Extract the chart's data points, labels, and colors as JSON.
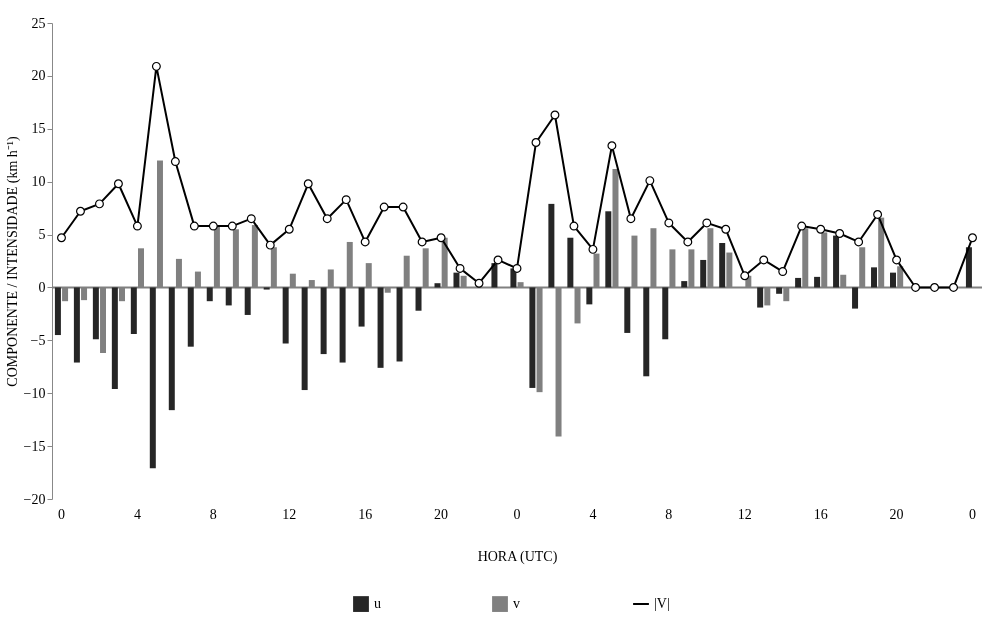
{
  "chart_data": {
    "type": "bar",
    "xlabel": "HORA (UTC)",
    "ylabel": "COMPONENTE / INTENSIDADE  (km h⁻¹)",
    "categories": [
      "0",
      null,
      null,
      null,
      "4",
      null,
      null,
      null,
      "8",
      null,
      null,
      null,
      "12",
      null,
      null,
      null,
      "16",
      null,
      null,
      null,
      "20",
      null,
      null,
      null,
      "0",
      null,
      null,
      null,
      "4",
      null,
      null,
      null,
      "8",
      null,
      null,
      null,
      "12",
      null,
      null,
      null,
      "16",
      null,
      null,
      null,
      "20",
      null,
      null,
      null,
      "0"
    ],
    "series": [
      {
        "name": "u",
        "color": "#262626",
        "values": [
          -4.5,
          -7.1,
          -4.9,
          -9.6,
          -4.4,
          -17.1,
          -11.6,
          -5.6,
          -1.3,
          -1.7,
          -2.6,
          -0.2,
          -5.3,
          -9.7,
          -6.3,
          -7.1,
          -3.7,
          -7.6,
          -7.0,
          -2.2,
          0.4,
          1.4,
          0,
          2.3,
          1.8,
          -9.5,
          7.9,
          4.7,
          -1.6,
          7.2,
          -4.3,
          -8.4,
          -4.9,
          0.6,
          2.6,
          4.2,
          0,
          -1.9,
          -0.6,
          0.9,
          1.0,
          4.9,
          -2.0,
          1.9,
          1.4,
          0,
          0,
          0,
          3.8
        ]
      },
      {
        "name": "v",
        "color": "#808080",
        "values": [
          -1.3,
          -1.2,
          -6.2,
          -1.3,
          3.7,
          12.0,
          2.7,
          1.5,
          5.8,
          5.5,
          5.9,
          3.8,
          1.3,
          0.7,
          1.7,
          4.3,
          2.3,
          -0.5,
          3.0,
          3.7,
          4.7,
          1.1,
          null,
          null,
          0.5,
          -9.9,
          -14.1,
          -3.4,
          3.2,
          11.2,
          4.9,
          5.6,
          3.6,
          3.6,
          5.6,
          3.3,
          1.1,
          -1.7,
          -1.3,
          5.6,
          5.2,
          1.2,
          3.8,
          6.6,
          2.0,
          0,
          0,
          0,
          null
        ]
      },
      {
        "name": "|V|",
        "type": "line",
        "color": "#000000",
        "marker": "circle",
        "values": [
          4.7,
          7.2,
          7.9,
          9.8,
          5.8,
          20.9,
          11.9,
          5.8,
          5.8,
          5.8,
          6.5,
          4.0,
          5.5,
          9.8,
          6.5,
          8.3,
          4.3,
          7.6,
          7.6,
          4.3,
          4.7,
          1.8,
          0.4,
          2.6,
          1.8,
          13.7,
          16.3,
          5.8,
          3.6,
          13.4,
          6.5,
          10.1,
          6.1,
          4.3,
          6.1,
          5.5,
          1.1,
          2.6,
          1.5,
          5.8,
          5.5,
          5.1,
          4.3,
          6.9,
          2.6,
          0,
          0,
          0,
          4.7
        ]
      }
    ],
    "ylim": [
      -20,
      25
    ],
    "yticks": [
      -20,
      -15,
      -10,
      -5,
      0,
      5,
      10,
      15,
      20,
      25
    ],
    "grid": false,
    "ref_lines": [
      {
        "axis": "y",
        "value": 0,
        "color": "#808080"
      }
    ],
    "legend": "bottom"
  }
}
